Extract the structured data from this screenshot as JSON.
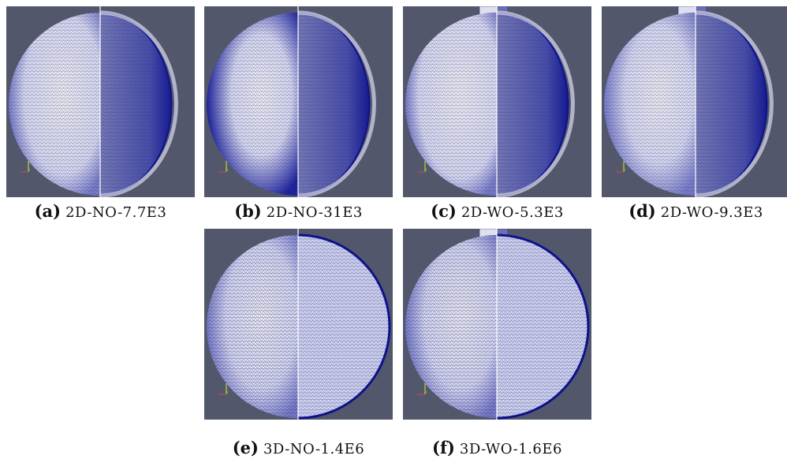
{
  "figures": [
    {
      "label": "(a)",
      "caption": "2D-NO-7.7E3"
    },
    {
      "label": "(b)",
      "caption": "2D-NO-31E3"
    },
    {
      "label": "(c)",
      "caption": "2D-WO-5.3E3"
    },
    {
      "label": "(d)",
      "caption": "2D-WO-9.3E3"
    },
    {
      "label": "(e)",
      "caption": "3D-NO-1.4E6"
    },
    {
      "label": "(f)",
      "caption": "3D-WO-1.6E6"
    }
  ]
}
